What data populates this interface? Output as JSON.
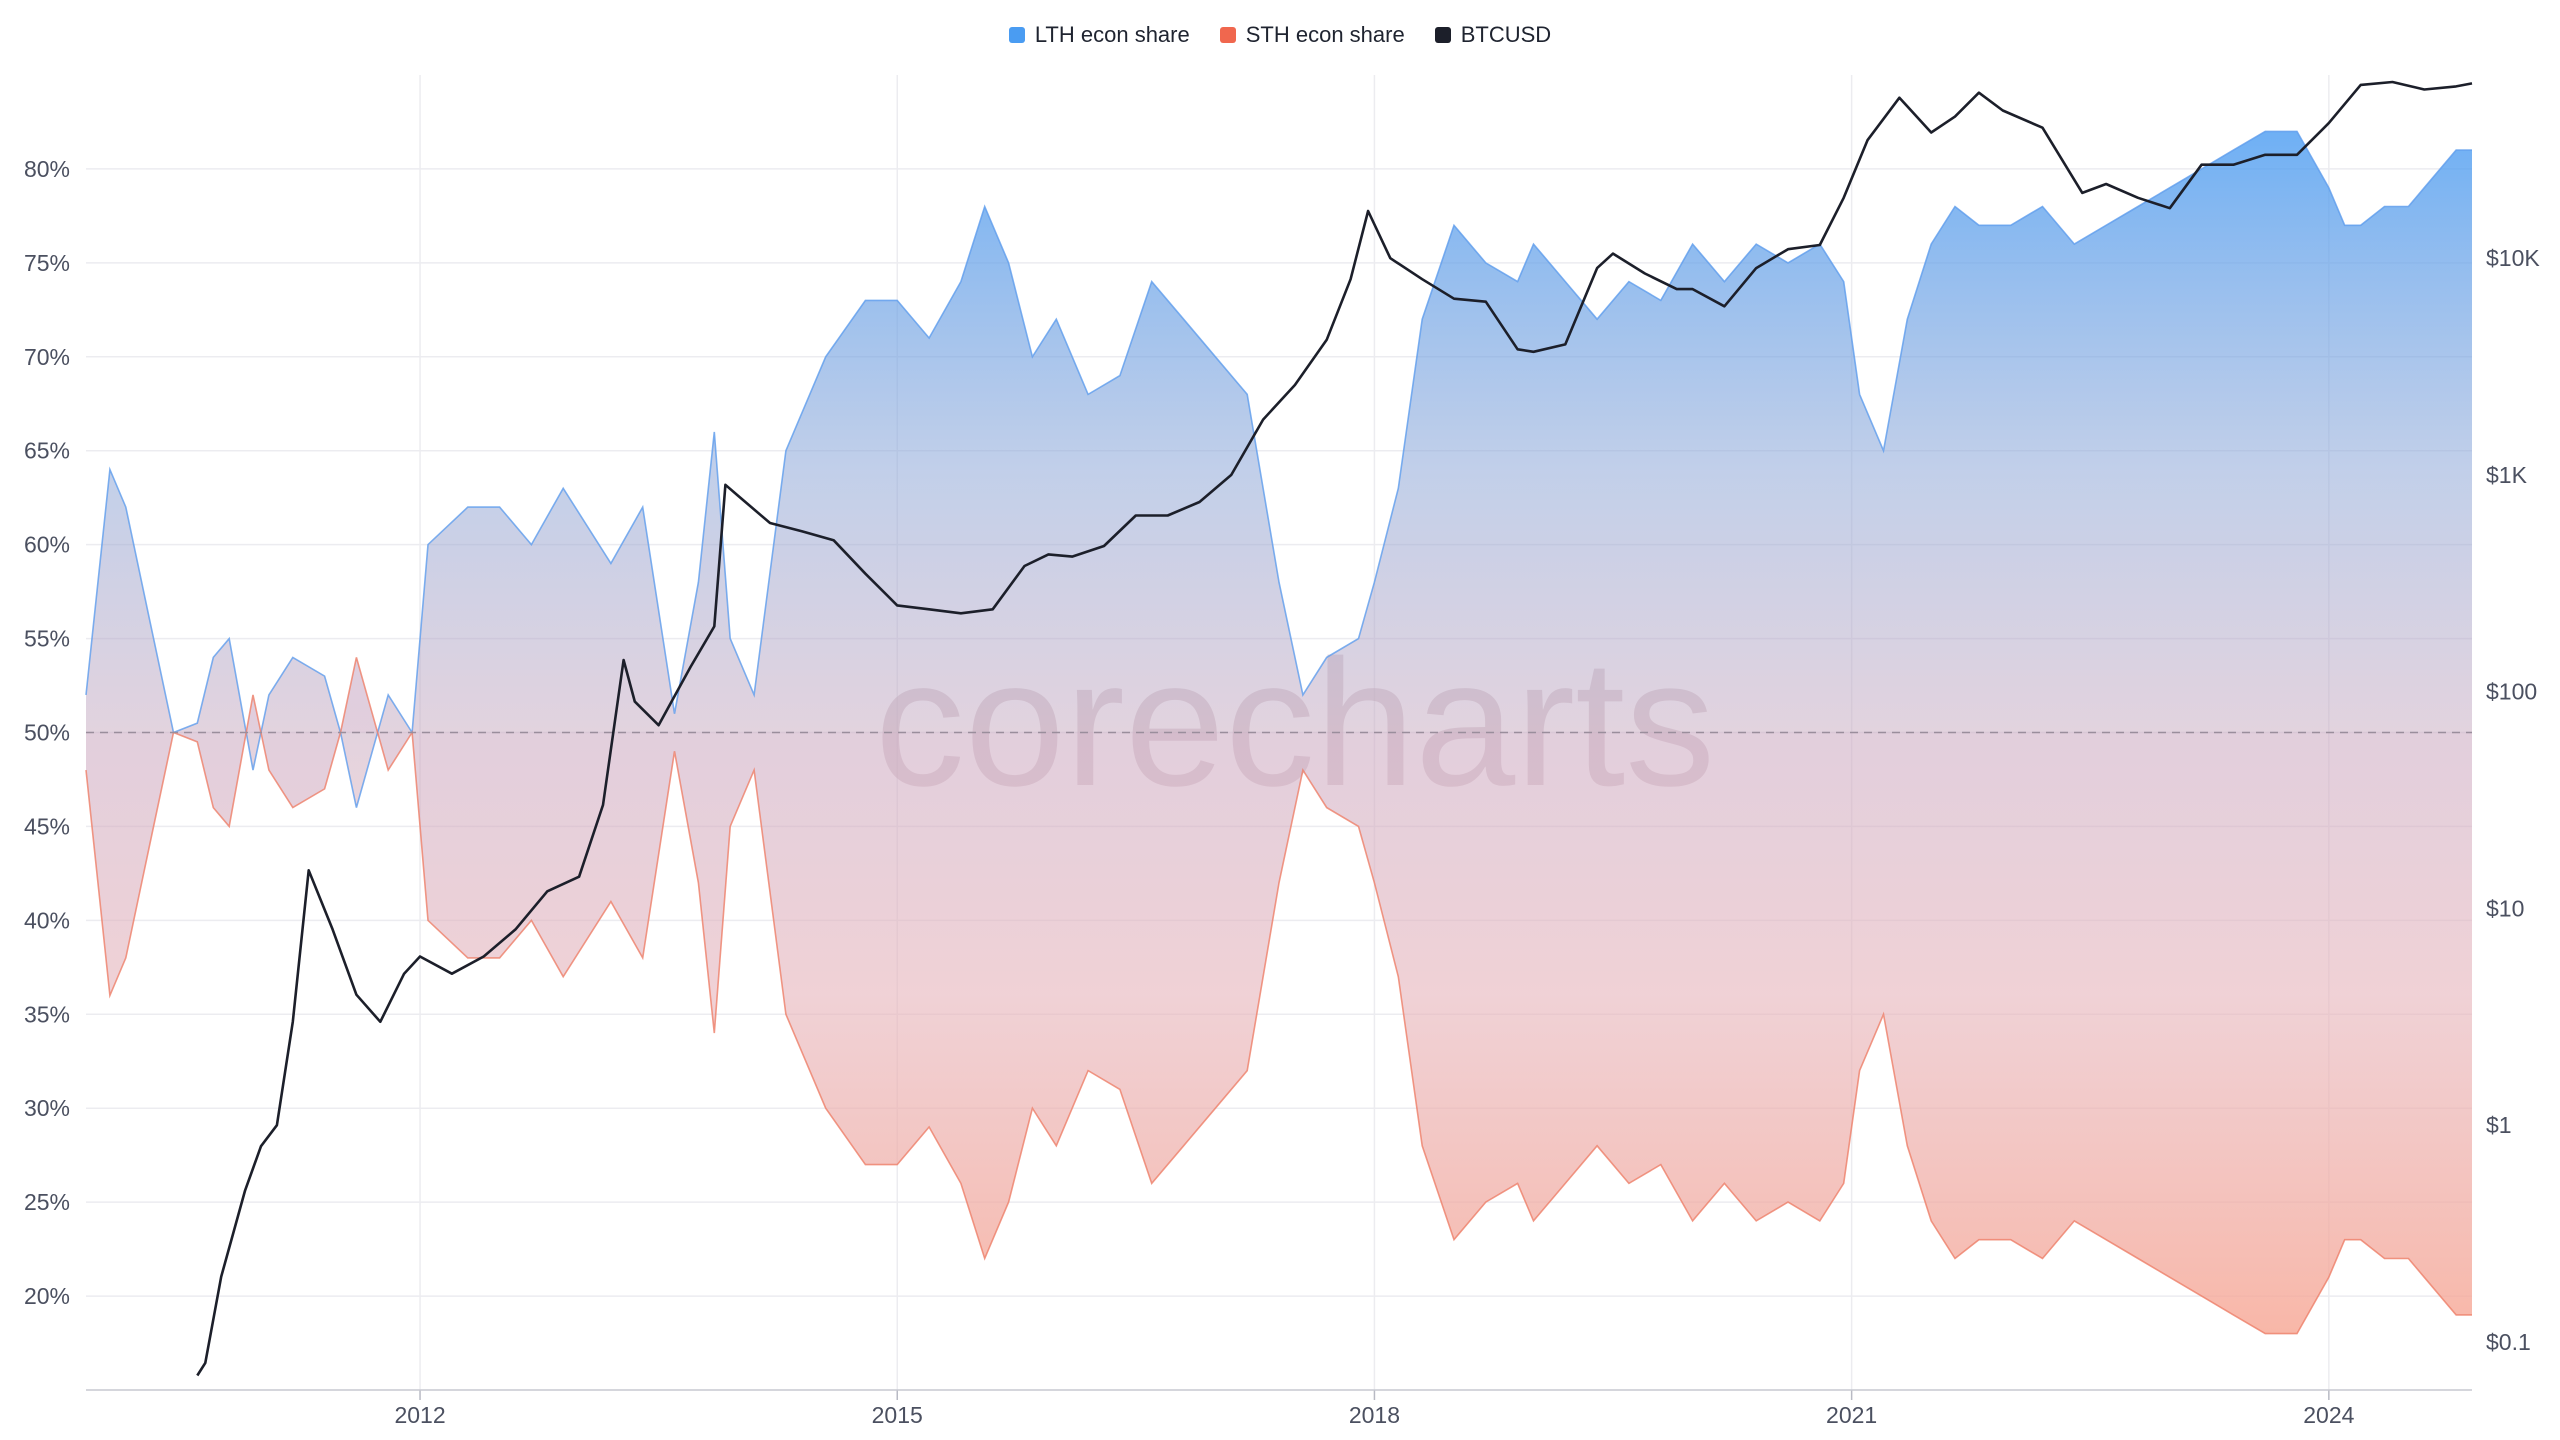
{
  "chart_data": {
    "type": "area",
    "watermark": "corecharts",
    "legend": [
      {
        "name": "LTH econ share",
        "color": "#4a9cf2"
      },
      {
        "name": "STH econ share",
        "color": "#f0674e"
      },
      {
        "name": "BTCUSD",
        "color": "#1c1f2a"
      }
    ],
    "x_ticks": [
      "2012",
      "2015",
      "2018",
      "2021",
      "2024"
    ],
    "x_tick_values": [
      2012,
      2015,
      2018,
      2021,
      2024
    ],
    "xlim": [
      2009.9,
      2024.9
    ],
    "y_left": {
      "ticks": [
        "20%",
        "25%",
        "30%",
        "35%",
        "40%",
        "45%",
        "50%",
        "55%",
        "60%",
        "65%",
        "70%",
        "75%",
        "80%"
      ],
      "tick_values": [
        20,
        25,
        30,
        35,
        40,
        45,
        50,
        55,
        60,
        65,
        70,
        75,
        80
      ],
      "ylim": [
        15,
        85
      ],
      "reference_line": 50
    },
    "y_right": {
      "ticks": [
        "$0.1",
        "$1",
        "$10",
        "$100",
        "$1K",
        "$10K"
      ],
      "tick_values": [
        0.1,
        1,
        10,
        100,
        1000,
        10000
      ],
      "scale": "log",
      "ylim": [
        0.06,
        70000
      ]
    },
    "series": [
      {
        "name": "LTH econ share",
        "x": [
          2009.9,
          2010.05,
          2010.15,
          2010.3,
          2010.45,
          2010.6,
          2010.7,
          2010.8,
          2010.95,
          2011.05,
          2011.2,
          2011.4,
          2011.5,
          2011.6,
          2011.7,
          2011.8,
          2011.95,
          2012.05,
          2012.3,
          2012.5,
          2012.7,
          2012.9,
          2013.05,
          2013.2,
          2013.4,
          2013.6,
          2013.75,
          2013.85,
          2013.95,
          2014.1,
          2014.3,
          2014.55,
          2014.8,
          2015.0,
          2015.2,
          2015.4,
          2015.55,
          2015.7,
          2015.85,
          2016.0,
          2016.2,
          2016.4,
          2016.6,
          2016.8,
          2017.0,
          2017.2,
          2017.4,
          2017.55,
          2017.7,
          2017.9,
          2018.0,
          2018.15,
          2018.3,
          2018.5,
          2018.7,
          2018.9,
          2019.0,
          2019.2,
          2019.4,
          2019.6,
          2019.8,
          2020.0,
          2020.2,
          2020.4,
          2020.6,
          2020.8,
          2020.95,
          2021.05,
          2021.2,
          2021.35,
          2021.5,
          2021.65,
          2021.8,
          2022.0,
          2022.2,
          2022.4,
          2022.6,
          2022.8,
          2023.0,
          2023.2,
          2023.4,
          2023.6,
          2023.8,
          2024.0,
          2024.1,
          2024.2,
          2024.35,
          2024.5,
          2024.6,
          2024.7,
          2024.8,
          2024.9
        ],
        "values": [
          52,
          64,
          62,
          56,
          50,
          50.5,
          54,
          55,
          48,
          52,
          54,
          53,
          50,
          46,
          49,
          52,
          50,
          60,
          62,
          62,
          60,
          63,
          61,
          59,
          62,
          51,
          58,
          66,
          55,
          52,
          65,
          70,
          73,
          73,
          71,
          74,
          78,
          75,
          70,
          72,
          68,
          69,
          74,
          72,
          70,
          68,
          58,
          52,
          54,
          55,
          58,
          63,
          72,
          77,
          75,
          74,
          76,
          74,
          72,
          74,
          73,
          76,
          74,
          76,
          75,
          76,
          74,
          68,
          65,
          72,
          76,
          78,
          77,
          77,
          78,
          76,
          77,
          78,
          79,
          80,
          81,
          82,
          82,
          79,
          77,
          77,
          78,
          78,
          79,
          80,
          81,
          81
        ]
      },
      {
        "name": "STH econ share",
        "x": [
          2009.9,
          2010.05,
          2010.15,
          2010.3,
          2010.45,
          2010.6,
          2010.7,
          2010.8,
          2010.95,
          2011.05,
          2011.2,
          2011.4,
          2011.5,
          2011.6,
          2011.7,
          2011.8,
          2011.95,
          2012.05,
          2012.3,
          2012.5,
          2012.7,
          2012.9,
          2013.05,
          2013.2,
          2013.4,
          2013.6,
          2013.75,
          2013.85,
          2013.95,
          2014.1,
          2014.3,
          2014.55,
          2014.8,
          2015.0,
          2015.2,
          2015.4,
          2015.55,
          2015.7,
          2015.85,
          2016.0,
          2016.2,
          2016.4,
          2016.6,
          2016.8,
          2017.0,
          2017.2,
          2017.4,
          2017.55,
          2017.7,
          2017.9,
          2018.0,
          2018.15,
          2018.3,
          2018.5,
          2018.7,
          2018.9,
          2019.0,
          2019.2,
          2019.4,
          2019.6,
          2019.8,
          2020.0,
          2020.2,
          2020.4,
          2020.6,
          2020.8,
          2020.95,
          2021.05,
          2021.2,
          2021.35,
          2021.5,
          2021.65,
          2021.8,
          2022.0,
          2022.2,
          2022.4,
          2022.6,
          2022.8,
          2023.0,
          2023.2,
          2023.4,
          2023.6,
          2023.8,
          2024.0,
          2024.1,
          2024.2,
          2024.35,
          2024.5,
          2024.6,
          2024.7,
          2024.8,
          2024.9
        ],
        "values": [
          48,
          36,
          38,
          44,
          50,
          49.5,
          46,
          45,
          52,
          48,
          46,
          47,
          50,
          54,
          51,
          48,
          50,
          40,
          38,
          38,
          40,
          37,
          39,
          41,
          38,
          49,
          42,
          34,
          45,
          48,
          35,
          30,
          27,
          27,
          29,
          26,
          22,
          25,
          30,
          28,
          32,
          31,
          26,
          28,
          30,
          32,
          42,
          48,
          46,
          45,
          42,
          37,
          28,
          23,
          25,
          26,
          24,
          26,
          28,
          26,
          27,
          24,
          26,
          24,
          25,
          24,
          26,
          32,
          35,
          28,
          24,
          22,
          23,
          23,
          22,
          24,
          23,
          22,
          21,
          20,
          19,
          18,
          18,
          21,
          23,
          23,
          22,
          22,
          21,
          20,
          19,
          19
        ]
      },
      {
        "name": "BTCUSD",
        "x": [
          2010.6,
          2010.65,
          2010.75,
          2010.9,
          2011.0,
          2011.1,
          2011.2,
          2011.3,
          2011.45,
          2011.6,
          2011.75,
          2011.9,
          2012.0,
          2012.2,
          2012.4,
          2012.6,
          2012.8,
          2013.0,
          2013.15,
          2013.28,
          2013.35,
          2013.5,
          2013.7,
          2013.85,
          2013.92,
          2014.0,
          2014.2,
          2014.4,
          2014.6,
          2014.8,
          2015.0,
          2015.2,
          2015.4,
          2015.6,
          2015.8,
          2015.95,
          2016.1,
          2016.3,
          2016.5,
          2016.7,
          2016.9,
          2017.1,
          2017.3,
          2017.5,
          2017.7,
          2017.85,
          2017.96,
          2018.1,
          2018.3,
          2018.5,
          2018.7,
          2018.9,
          2019.0,
          2019.2,
          2019.4,
          2019.5,
          2019.7,
          2019.9,
          2020.0,
          2020.2,
          2020.4,
          2020.6,
          2020.8,
          2020.95,
          2021.1,
          2021.3,
          2021.5,
          2021.65,
          2021.8,
          2021.95,
          2022.2,
          2022.45,
          2022.6,
          2022.8,
          2023.0,
          2023.2,
          2023.4,
          2023.6,
          2023.8,
          2024.0,
          2024.2,
          2024.4,
          2024.6,
          2024.8,
          2024.9
        ],
        "values": [
          0.07,
          0.08,
          0.2,
          0.5,
          0.8,
          1,
          3,
          15,
          8,
          4,
          3,
          5,
          6,
          5,
          6,
          8,
          12,
          14,
          30,
          140,
          90,
          70,
          130,
          200,
          900,
          800,
          600,
          550,
          500,
          350,
          250,
          240,
          230,
          240,
          380,
          430,
          420,
          470,
          650,
          650,
          750,
          1000,
          1800,
          2600,
          4200,
          8000,
          16500,
          10000,
          8000,
          6500,
          6300,
          3800,
          3700,
          4000,
          9000,
          10500,
          8500,
          7200,
          7200,
          6000,
          9000,
          11000,
          11500,
          19000,
          35000,
          55000,
          38000,
          45000,
          58000,
          48000,
          40000,
          20000,
          22000,
          19000,
          17000,
          27000,
          27000,
          30000,
          30000,
          42000,
          63000,
          65000,
          60000,
          62000,
          64000
        ]
      }
    ]
  }
}
